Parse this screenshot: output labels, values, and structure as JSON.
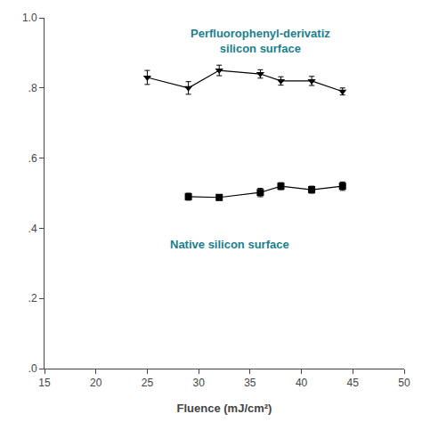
{
  "chart_data": {
    "type": "scatter",
    "xlabel": "Fluence (mJ/cm²)",
    "series": [
      {
        "x": [
          25.0,
          29.0,
          32.0,
          36.0,
          38.0,
          41.0,
          44.0
        ],
        "values": [
          0.83,
          0.8,
          0.85,
          0.84,
          0.82,
          0.82,
          0.79
        ],
        "errors": [
          0.02,
          0.018,
          0.015,
          0.012,
          0.012,
          0.013,
          0.01
        ],
        "color": "#000000",
        "marker": "triangle-down",
        "line_style": "solid"
      },
      {
        "x": [
          29.0,
          32.0,
          36.0,
          38.0,
          41.0,
          44.0
        ],
        "values": [
          0.49,
          0.488,
          0.502,
          0.52,
          0.51,
          0.52
        ],
        "errors": [
          0.01,
          0.008,
          0.012,
          0.01,
          0.01,
          0.012
        ],
        "color": "#000000",
        "marker": "square",
        "line_style": "solid"
      }
    ],
    "annotations": [
      {
        "text": "Perfluorophenyl-derivatiz\nsilicon surface",
        "x": 36.0,
        "y": 0.935,
        "color": "#1a7f8e"
      },
      {
        "text": "Native silicon surface",
        "x": 33.0,
        "y": 0.355,
        "color": "#1a7f8e"
      }
    ],
    "xlim": [
      15,
      50
    ],
    "ylim": [
      0.0,
      1.0
    ],
    "xticks": [
      15,
      20,
      25,
      30,
      35,
      40,
      45,
      50
    ],
    "yticks": [
      {
        "value": 0.0,
        "label": ".0"
      },
      {
        "value": 0.2,
        "label": ".2"
      },
      {
        "value": 0.4,
        "label": ".4"
      },
      {
        "value": 0.6,
        "label": ".6"
      },
      {
        "value": 0.8,
        "label": ".8"
      },
      {
        "value": 1.0,
        "label": "1.0"
      }
    ],
    "grid": false
  }
}
